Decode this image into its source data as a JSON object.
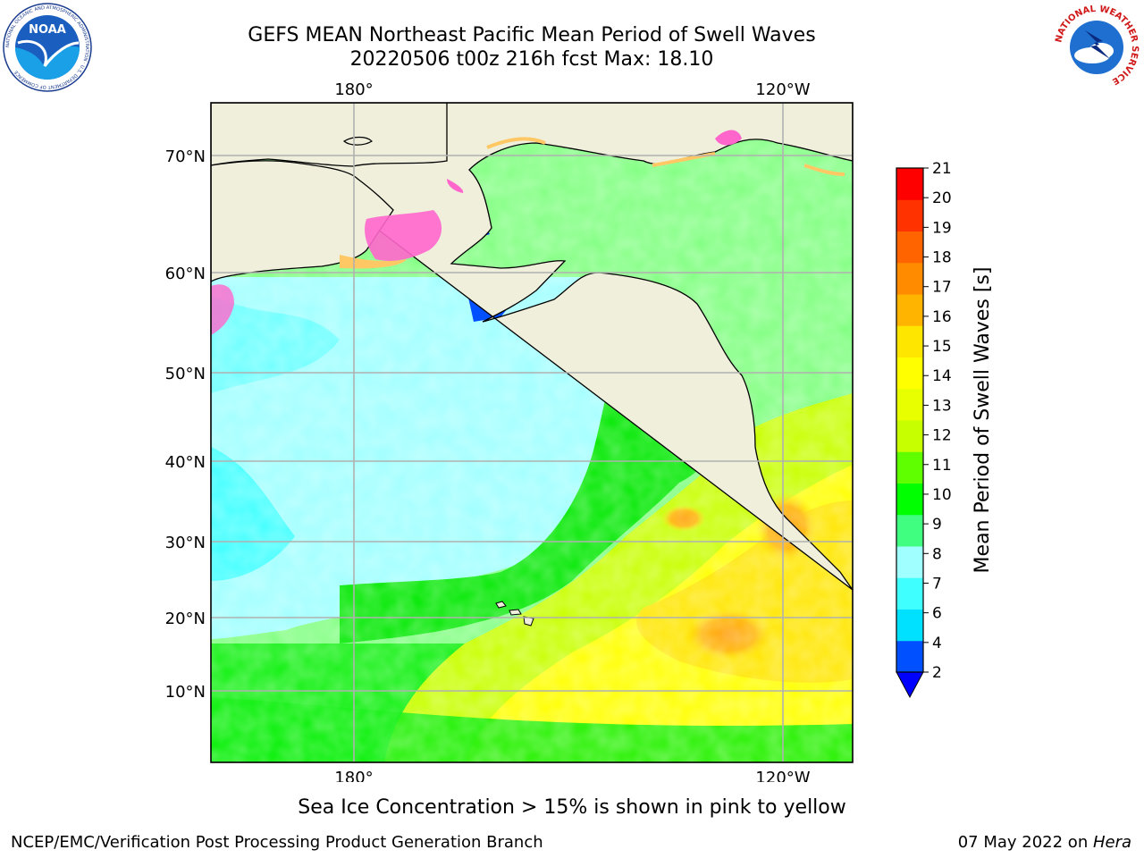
{
  "title": {
    "line1": "GEFS MEAN Northeast Pacific Mean Period of Swell Waves",
    "line2": "20220506 t00z 216h fcst   Max: 18.10"
  },
  "map": {
    "lon_labels_top": [
      "180°",
      "120°W"
    ],
    "lon_labels_bottom": [
      "180°",
      "120°W"
    ],
    "lat_labels": [
      "70°N",
      "60°N",
      "50°N",
      "40°N",
      "30°N",
      "20°N",
      "10°N"
    ]
  },
  "colorbar": {
    "label": "Mean Period of Swell Waves [s]",
    "ticks": [
      "2",
      "4",
      "6",
      "7",
      "8",
      "9",
      "10",
      "11",
      "12",
      "13",
      "14",
      "15",
      "16",
      "17",
      "18",
      "19",
      "20",
      "21"
    ],
    "colors": [
      "#0050ff",
      "#00e0ff",
      "#40ffff",
      "#a0ffff",
      "#40ff80",
      "#00ff00",
      "#60ff00",
      "#c8ff00",
      "#e8ff00",
      "#ffff00",
      "#ffe600",
      "#ffb400",
      "#ff8c00",
      "#ff6400",
      "#ff3200",
      "#ff0000"
    ],
    "extend_color": "#0000ff"
  },
  "caption": "Sea Ice Concentration > 15% is shown in pink to yellow",
  "footer": {
    "left": "NCEP/EMC/Verification Post Processing Product Generation Branch",
    "right_prefix": "07 May 2022 on ",
    "right_host": "Hera"
  },
  "logos": {
    "noaa_text": "NOAA",
    "noaa_ring": "NATIONAL OCEANIC AND ATMOSPHERIC ADMINISTRATION · U.S. DEPARTMENT OF COMMERCE",
    "nws_ring": "NATIONAL WEATHER SERVICE"
  },
  "colors": {
    "land": "#efefdc",
    "grid": "#b0b0b0"
  }
}
